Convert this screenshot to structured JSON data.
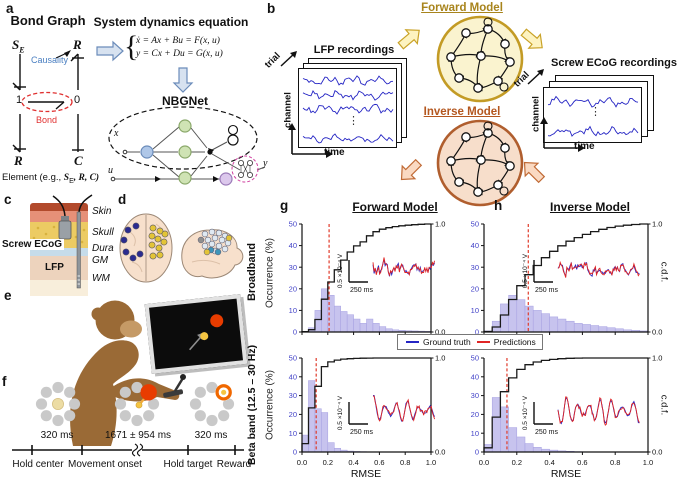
{
  "colors": {
    "trace_blue": "#2525c4",
    "pred_red": "#e02525",
    "hist_fill": "#c7c3ee",
    "hist_edge": "#a6a0e2",
    "cdf_black": "#1a1a1a",
    "median_red": "#e03a2a",
    "tick_blue": "#4343c8",
    "forward_fill": "#faf3cf",
    "forward_stroke": "#c39b25",
    "forward_text": "#a8841c",
    "inverse_fill": "#f7decb",
    "inverse_stroke": "#b05e2e",
    "inverse_text": "#b4571f",
    "causality_blue": "#4a7fc1",
    "bond_red": "#e03030",
    "block_arrow_fill": "#d7e2f0",
    "block_arrow_stroke": "#6b8cba",
    "yellow_arrow_fill": "#fdf3c0",
    "yellow_arrow_stroke": "#c9a227",
    "orange_arrow_fill": "#fad9c2",
    "orange_arrow_stroke": "#c06a35",
    "monkey_brown": "#9a6a36",
    "monkey_face": "#c59a66",
    "skin": "#b24a2c",
    "fat": "#e69078",
    "skull": "#eccb63",
    "dura": "#c6dcea",
    "gm": "#edd3bd",
    "wm": "#f8eedb",
    "brain_fill": "#f7e0cc",
    "navy_dot": "#2b2b8f",
    "yellow_dot": "#e3c437",
    "teal_dot": "#3d95ba",
    "pale_dot": "#dfe9f2",
    "gray_dot": "#8f8f8f",
    "target_red": "#e83c00",
    "cursor_yellow": "#f5c542",
    "ring_gray": "#c9c9c9"
  },
  "panel_a": {
    "label": "a",
    "title": "Bond Graph",
    "se_main": "S",
    "se_sub": "E",
    "r_top": "R",
    "causality": "Causality",
    "one": "1",
    "zero": "0",
    "bond": "Bond",
    "r_bottom": "R",
    "c_node": "C",
    "element_prefix": "Element (e.g., ",
    "element_s": "S",
    "element_s_sub": "E",
    "element_rest": ", R, C)",
    "eq_title": "System dynamics equation",
    "eq_brace": "{",
    "eq_line1": "ẋ = Ax + Bu = F(x, u)",
    "eq_line2": "y = Cx + Du = G(x, u)",
    "nbgnet": "NBGNet",
    "x_in": "x",
    "u_in": "u",
    "y_out": "y"
  },
  "panel_b": {
    "label": "b",
    "lfp_title": "LFP recordings",
    "ecog_title": "Screw ECoG recordings",
    "trial": "trial",
    "channel": "channel",
    "time": "time",
    "ellipsis": "⋮",
    "forward_title": "Forward Model",
    "inverse_title": "Inverse Model"
  },
  "panel_c": {
    "label": "c",
    "screw_label": "Screw ECoG",
    "lfp_label": "LFP",
    "layers": [
      "Skin",
      "Skull",
      "Dura",
      "GM",
      "WM"
    ]
  },
  "panel_d": {
    "label": "d"
  },
  "panel_e": {
    "label": "e"
  },
  "panel_f": {
    "label": "f",
    "durations": [
      "320 ms",
      "1671 ± 954 ms",
      "320 ms"
    ],
    "stages": [
      "Hold center",
      "Movement onset",
      "Hold target",
      "Reward"
    ]
  },
  "results": {
    "g_label": "g",
    "h_label": "h",
    "g_title": "Forward Model",
    "h_title": "Inverse Model",
    "row1_label": "Broadband",
    "row2_label": "Beta band (12.5 – 30 Hz)",
    "ylabel": "Occurrence (%)",
    "xlabel": "RMSE",
    "cdf_label": "c.d.f.",
    "y_ticks": [
      "0",
      "10",
      "20",
      "30",
      "40",
      "50"
    ],
    "x_ticks": [
      "0.0",
      "0.2",
      "0.4",
      "0.6",
      "0.8",
      "1.0"
    ],
    "cdf_top": "1.0",
    "cdf_bottom": "0.0",
    "inset_vscale": "0.5 ×10⁻⁴ V",
    "inset_tscale": "250 ms",
    "legend": [
      {
        "label": "Ground truth",
        "color": "#2525c4"
      },
      {
        "label": "Predictions",
        "color": "#e02525"
      }
    ]
  },
  "chart_data": [
    {
      "slot": "g-top",
      "type": "bar",
      "subtype": "histogram_with_cdf",
      "model": "Forward Model",
      "band": "Broadband",
      "xlabel": "RMSE",
      "ylabel": "Occurrence (%)",
      "xlim": [
        0,
        1
      ],
      "ylim": [
        0,
        50
      ],
      "cdf_ylim": [
        0,
        1
      ],
      "bin_width": 0.05,
      "bin_start": 0,
      "occurrence_pct": [
        0.3,
        2,
        10,
        20,
        17,
        12,
        9.5,
        8,
        6,
        4,
        6,
        4,
        2.5,
        1.5,
        1,
        0.8,
        0.6,
        0.5,
        0.4,
        0.3
      ],
      "median_rmse": 0.21,
      "inset": {
        "kind": "broadband",
        "burst_left": true
      }
    },
    {
      "slot": "g-bot",
      "type": "bar",
      "subtype": "histogram_with_cdf",
      "model": "Forward Model",
      "band": "Beta band (12.5 – 30 Hz)",
      "xlabel": "RMSE",
      "ylabel": "Occurrence (%)",
      "xlim": [
        0,
        1
      ],
      "ylim": [
        0,
        50
      ],
      "cdf_ylim": [
        0,
        1
      ],
      "bin_width": 0.05,
      "bin_start": 0,
      "occurrence_pct": [
        9,
        38,
        23,
        21,
        5,
        2,
        1,
        0.5,
        0.3,
        0.2,
        0.1,
        0.1,
        0,
        0,
        0,
        0,
        0,
        0,
        0,
        0
      ],
      "median_rmse": 0.11,
      "inset": {
        "kind": "beta",
        "burst_left": true
      }
    },
    {
      "slot": "h-top",
      "type": "bar",
      "subtype": "histogram_with_cdf",
      "model": "Inverse Model",
      "band": "Broadband",
      "xlabel": "RMSE",
      "ylabel": "Occurrence (%)",
      "xlim": [
        0,
        1
      ],
      "ylim": [
        0,
        50
      ],
      "cdf_ylim": [
        0,
        1
      ],
      "bin_width": 0.05,
      "bin_start": 0,
      "occurrence_pct": [
        0.5,
        5,
        13,
        17,
        15,
        12,
        10,
        8.5,
        7,
        6,
        5,
        4,
        3.5,
        3,
        2.5,
        2,
        1.5,
        1,
        0.8,
        0.5
      ],
      "median_rmse": 0.27,
      "inset": {
        "kind": "broadband",
        "burst_left": false
      }
    },
    {
      "slot": "h-bot",
      "type": "bar",
      "subtype": "histogram_with_cdf",
      "model": "Inverse Model",
      "band": "Beta band (12.5 – 30 Hz)",
      "xlabel": "RMSE",
      "ylabel": "Occurrence (%)",
      "xlim": [
        0,
        1
      ],
      "ylim": [
        0,
        50
      ],
      "cdf_ylim": [
        0,
        1
      ],
      "bin_width": 0.05,
      "bin_start": 0,
      "occurrence_pct": [
        4,
        29,
        24,
        13,
        8,
        4.5,
        2.5,
        1.5,
        1,
        0.6,
        0.4,
        0.2,
        0.1,
        0,
        0,
        0,
        0,
        0,
        0,
        0
      ],
      "median_rmse": 0.14,
      "inset": {
        "kind": "beta",
        "burst_left": false
      }
    }
  ]
}
